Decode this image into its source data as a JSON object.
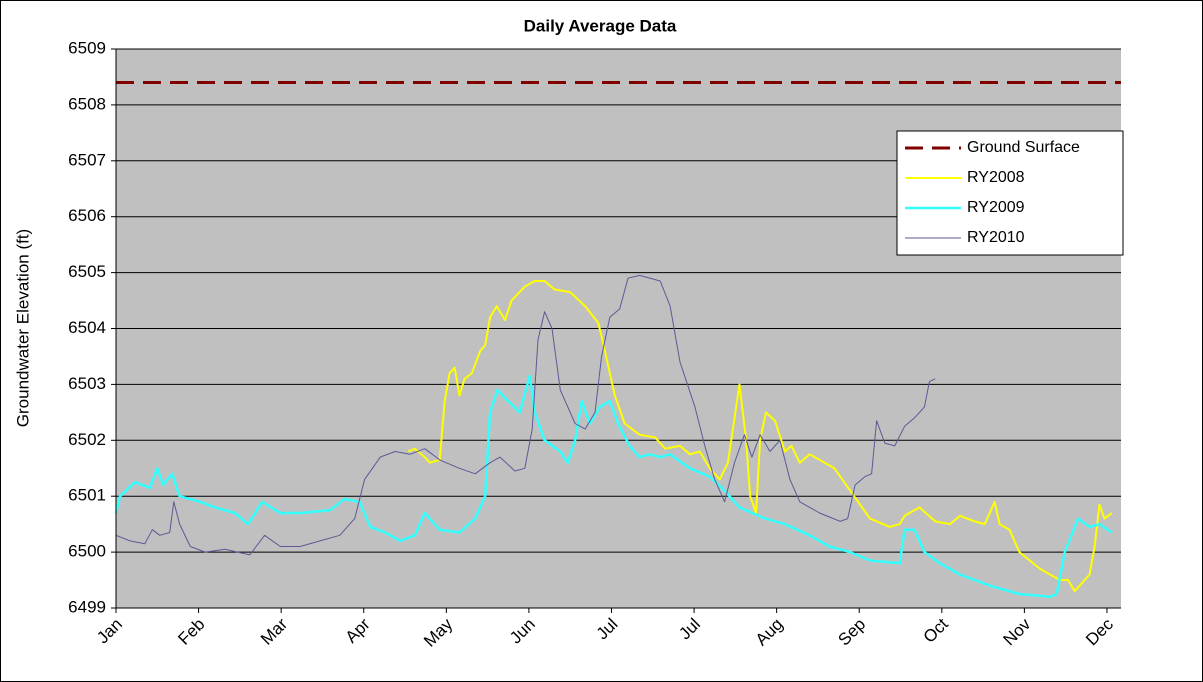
{
  "chart_data": {
    "type": "line",
    "title": "Daily Average Data",
    "y_label": "Groundwater Elevation (ft)",
    "xlim": [
      0,
      12.17
    ],
    "ylim": [
      6499,
      6509
    ],
    "xticks": [
      {
        "value": 0,
        "label": "Jan"
      },
      {
        "value": 1,
        "label": "Feb"
      },
      {
        "value": 2,
        "label": "Mar"
      },
      {
        "value": 3,
        "label": "Apr"
      },
      {
        "value": 4,
        "label": "May"
      },
      {
        "value": 5,
        "label": "Jun"
      },
      {
        "value": 6,
        "label": "Jul"
      },
      {
        "value": 7,
        "label": "Jul"
      },
      {
        "value": 8,
        "label": "Aug"
      },
      {
        "value": 9,
        "label": "Sep"
      },
      {
        "value": 10,
        "label": "Oct"
      },
      {
        "value": 11,
        "label": "Nov"
      },
      {
        "value": 12,
        "label": "Dec"
      }
    ],
    "yticks": [
      6499,
      6500,
      6501,
      6502,
      6503,
      6504,
      6505,
      6506,
      6507,
      6508,
      6509
    ],
    "grid": true,
    "legend": "right",
    "series": [
      {
        "name": "Ground Surface",
        "color": "#800000",
        "dashed": true,
        "line_width": 3,
        "x": [
          0,
          12.17
        ],
        "values": [
          6508.4,
          6508.4
        ]
      },
      {
        "name": "RY2008",
        "color": "#ffff00",
        "dashed": false,
        "line_width": 2,
        "x": [
          3.54,
          3.62,
          3.74,
          3.8,
          3.92,
          3.98,
          4.04,
          4.1,
          4.16,
          4.22,
          4.31,
          4.41,
          4.47,
          4.53,
          4.61,
          4.71,
          4.79,
          4.95,
          5.07,
          5.19,
          5.31,
          5.5,
          5.68,
          5.84,
          5.92,
          6.04,
          6.16,
          6.34,
          6.53,
          6.65,
          6.83,
          6.95,
          7.07,
          7.19,
          7.31,
          7.41,
          7.47,
          7.55,
          7.63,
          7.68,
          7.75,
          7.8,
          7.87,
          7.98,
          8.1,
          8.18,
          8.28,
          8.4,
          8.52,
          8.7,
          8.89,
          9.13,
          9.37,
          9.49,
          9.55,
          9.73,
          9.92,
          10.1,
          10.22,
          10.4,
          10.52,
          10.64,
          10.7,
          10.82,
          10.94,
          11.19,
          11.31,
          11.43,
          11.53,
          11.61,
          11.73,
          11.79,
          11.85,
          11.91,
          11.97,
          12.06
        ],
        "values": [
          6501.8,
          6501.85,
          6501.7,
          6501.6,
          6501.65,
          6502.7,
          6503.2,
          6503.3,
          6502.8,
          6503.1,
          6503.2,
          6503.6,
          6503.7,
          6504.2,
          6504.4,
          6504.15,
          6504.5,
          6504.75,
          6504.85,
          6504.85,
          6504.7,
          6504.65,
          6504.4,
          6504.1,
          6503.6,
          6502.8,
          6502.3,
          6502.1,
          6502.05,
          6501.85,
          6501.9,
          6501.75,
          6501.8,
          6501.5,
          6501.3,
          6501.6,
          6502.2,
          6503.0,
          6502.0,
          6501.0,
          6500.7,
          6502.0,
          6502.5,
          6502.35,
          6501.8,
          6501.9,
          6501.6,
          6501.75,
          6501.65,
          6501.5,
          6501.1,
          6500.6,
          6500.45,
          6500.5,
          6500.65,
          6500.8,
          6500.55,
          6500.5,
          6500.65,
          6500.55,
          6500.5,
          6500.9,
          6500.5,
          6500.4,
          6500.0,
          6499.7,
          6499.6,
          6499.5,
          6499.5,
          6499.3,
          6499.5,
          6499.6,
          6500.1,
          6500.85,
          6500.6,
          6500.7
        ]
      },
      {
        "name": "RY2009",
        "color": "#33ffff",
        "dashed": false,
        "line_width": 2.5,
        "x": [
          0,
          0.05,
          0.23,
          0.41,
          0.5,
          0.57,
          0.68,
          0.77,
          1.02,
          1.2,
          1.44,
          1.6,
          1.77,
          1.99,
          2.23,
          2.59,
          2.77,
          2.95,
          3.08,
          3.26,
          3.44,
          3.62,
          3.74,
          3.92,
          4.16,
          4.35,
          4.47,
          4.53,
          4.62,
          4.75,
          4.89,
          5.01,
          5.07,
          5.19,
          5.38,
          5.47,
          5.56,
          5.64,
          5.74,
          5.86,
          5.98,
          6.08,
          6.22,
          6.34,
          6.46,
          6.59,
          6.71,
          6.95,
          7.19,
          7.37,
          7.55,
          7.86,
          8.1,
          8.4,
          8.64,
          8.89,
          9.13,
          9.49,
          9.55,
          9.67,
          9.79,
          9.98,
          10.22,
          10.58,
          10.94,
          11.31,
          11.39,
          11.49,
          11.65,
          11.79,
          11.91,
          12.06
        ],
        "values": [
          6500.7,
          6501.0,
          6501.25,
          6501.15,
          6501.5,
          6501.2,
          6501.4,
          6501.0,
          6500.9,
          6500.8,
          6500.7,
          6500.5,
          6500.9,
          6500.7,
          6500.7,
          6500.75,
          6500.95,
          6500.9,
          6500.45,
          6500.35,
          6500.2,
          6500.3,
          6500.7,
          6500.4,
          6500.35,
          6500.6,
          6501.0,
          6502.5,
          6502.9,
          6502.7,
          6502.5,
          6503.15,
          6502.5,
          6502.0,
          6501.8,
          6501.6,
          6502.0,
          6502.7,
          6502.3,
          6502.6,
          6502.7,
          6502.3,
          6501.9,
          6501.7,
          6501.75,
          6501.7,
          6501.75,
          6501.5,
          6501.35,
          6501.1,
          6500.8,
          6500.6,
          6500.5,
          6500.3,
          6500.1,
          6500.0,
          6499.85,
          6499.8,
          6500.4,
          6500.4,
          6500.0,
          6499.8,
          6499.6,
          6499.4,
          6499.25,
          6499.2,
          6499.25,
          6500.0,
          6500.6,
          6500.45,
          6500.5,
          6500.35
        ]
      },
      {
        "name": "RY2010",
        "color": "#5a5a96",
        "dashed": false,
        "line_width": 1,
        "x": [
          0,
          0.17,
          0.35,
          0.44,
          0.53,
          0.65,
          0.7,
          0.77,
          0.9,
          1.08,
          1.32,
          1.62,
          1.8,
          1.99,
          2.23,
          2.47,
          2.71,
          2.89,
          3.01,
          3.2,
          3.38,
          3.56,
          3.74,
          3.92,
          4.16,
          4.35,
          4.53,
          4.65,
          4.83,
          4.95,
          5.04,
          5.11,
          5.19,
          5.28,
          5.38,
          5.47,
          5.56,
          5.68,
          5.8,
          5.88,
          5.98,
          6.1,
          6.2,
          6.34,
          6.59,
          6.71,
          6.83,
          7.01,
          7.13,
          7.25,
          7.37,
          7.49,
          7.61,
          7.7,
          7.8,
          7.92,
          8.04,
          8.16,
          8.28,
          8.52,
          8.77,
          8.86,
          8.95,
          9.07,
          9.15,
          9.21,
          9.31,
          9.43,
          9.55,
          9.67,
          9.79,
          9.85,
          9.92
        ],
        "values": [
          6500.3,
          6500.2,
          6500.15,
          6500.4,
          6500.3,
          6500.35,
          6500.9,
          6500.5,
          6500.1,
          6500.0,
          6500.05,
          6499.95,
          6500.3,
          6500.1,
          6500.1,
          6500.2,
          6500.3,
          6500.6,
          6501.3,
          6501.7,
          6501.8,
          6501.75,
          6501.85,
          6501.65,
          6501.5,
          6501.4,
          6501.6,
          6501.7,
          6501.45,
          6501.5,
          6502.2,
          6503.8,
          6504.3,
          6504.0,
          6502.9,
          6502.6,
          6502.3,
          6502.2,
          6502.5,
          6503.5,
          6504.2,
          6504.35,
          6504.9,
          6504.95,
          6504.85,
          6504.4,
          6503.4,
          6502.6,
          6501.9,
          6501.3,
          6500.9,
          6501.6,
          6502.1,
          6501.7,
          6502.1,
          6501.8,
          6502.0,
          6501.3,
          6500.9,
          6500.7,
          6500.55,
          6500.6,
          6501.2,
          6501.35,
          6501.4,
          6502.35,
          6501.95,
          6501.9,
          6502.25,
          6502.4,
          6502.6,
          6503.05,
          6503.1
        ]
      }
    ]
  }
}
